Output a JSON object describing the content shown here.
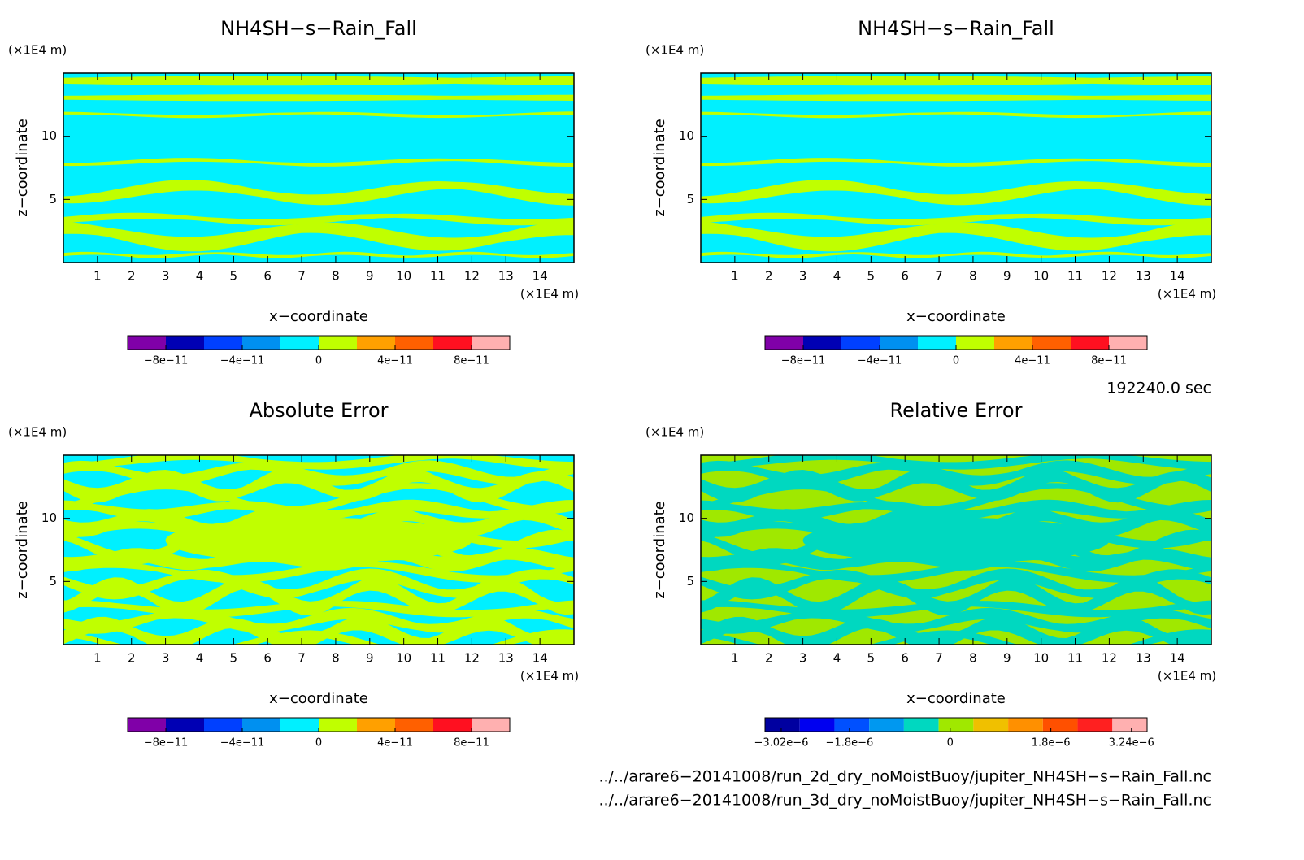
{
  "chart_data": [
    {
      "type": "contour",
      "title": "NH4SH−s−Rain_Fall",
      "y_unit": "(×1E4 m)",
      "x_unit": "(×1E4 m)",
      "ylabel": "z−coordinate",
      "xlabel": "x−coordinate",
      "xlim": [
        0,
        15
      ],
      "ylim": [
        0,
        15
      ],
      "xticks": [
        1,
        2,
        3,
        4,
        5,
        6,
        7,
        8,
        9,
        10,
        11,
        12,
        13,
        14
      ],
      "yticks": [
        5,
        10
      ],
      "colorbar": {
        "colors": [
          "#8000a8",
          "#0000b4",
          "#0040ff",
          "#0090f0",
          "#00f0ff",
          "#c0ff00",
          "#ffa000",
          "#ff6000",
          "#ff1020",
          "#ffb0b0"
        ],
        "clim": [
          -1e-10,
          1e-10
        ],
        "ticks": [
          {
            "value": -8e-11,
            "label": "−8e−11"
          },
          {
            "value": -4e-11,
            "label": "−4e−11"
          },
          0,
          {
            "value": 4e-11,
            "label": "4e−11"
          },
          {
            "value": 8e-11,
            "label": "8e−11"
          }
        ]
      }
    },
    {
      "type": "contour",
      "title": "NH4SH−s−Rain_Fall",
      "y_unit": "(×1E4 m)",
      "x_unit": "(×1E4 m)",
      "ylabel": "z−coordinate",
      "xlabel": "x−coordinate",
      "xlim": [
        0,
        15
      ],
      "ylim": [
        0,
        15
      ],
      "xticks": [
        1,
        2,
        3,
        4,
        5,
        6,
        7,
        8,
        9,
        10,
        11,
        12,
        13,
        14
      ],
      "yticks": [
        5,
        10
      ],
      "colorbar": {
        "colors": [
          "#8000a8",
          "#0000b4",
          "#0040ff",
          "#0090f0",
          "#00f0ff",
          "#c0ff00",
          "#ffa000",
          "#ff6000",
          "#ff1020",
          "#ffb0b0"
        ],
        "clim": [
          -1e-10,
          1e-10
        ],
        "ticks": [
          {
            "value": -8e-11,
            "label": "−8e−11"
          },
          {
            "value": -4e-11,
            "label": "−4e−11"
          },
          0,
          {
            "value": 4e-11,
            "label": "4e−11"
          },
          {
            "value": 8e-11,
            "label": "8e−11"
          }
        ]
      },
      "time": "192240.0 sec"
    },
    {
      "type": "contour",
      "title": "Absolute Error",
      "y_unit": "(×1E4 m)",
      "x_unit": "(×1E4 m)",
      "ylabel": "z−coordinate",
      "xlabel": "x−coordinate",
      "xlim": [
        0,
        15
      ],
      "ylim": [
        0,
        15
      ],
      "xticks": [
        1,
        2,
        3,
        4,
        5,
        6,
        7,
        8,
        9,
        10,
        11,
        12,
        13,
        14
      ],
      "yticks": [
        5,
        10
      ],
      "colorbar": {
        "colors": [
          "#8000a8",
          "#0000b4",
          "#0040ff",
          "#0090f0",
          "#00f0ff",
          "#c0ff00",
          "#ffa000",
          "#ff6000",
          "#ff1020",
          "#ffb0b0"
        ],
        "clim": [
          -1e-10,
          1e-10
        ],
        "ticks": [
          {
            "value": -8e-11,
            "label": "−8e−11"
          },
          {
            "value": -4e-11,
            "label": "−4e−11"
          },
          0,
          {
            "value": 4e-11,
            "label": "4e−11"
          },
          {
            "value": 8e-11,
            "label": "8e−11"
          }
        ]
      }
    },
    {
      "type": "contour",
      "title": "Relative Error",
      "y_unit": "(×1E4 m)",
      "x_unit": "(×1E4 m)",
      "ylabel": "z−coordinate",
      "xlabel": "x−coordinate",
      "xlim": [
        0,
        15
      ],
      "ylim": [
        0,
        15
      ],
      "xticks": [
        1,
        2,
        3,
        4,
        5,
        6,
        7,
        8,
        9,
        10,
        11,
        12,
        13,
        14
      ],
      "yticks": [
        5,
        10
      ],
      "colorbar": {
        "colors": [
          "#0000a0",
          "#0000f0",
          "#0050ff",
          "#0098f0",
          "#00d8c0",
          "#a0e800",
          "#f0c000",
          "#ff9000",
          "#ff5000",
          "#ff2020",
          "#ffb0b0"
        ],
        "clim": [
          -3.31e-06,
          3.52e-06
        ],
        "ticks": [
          {
            "value": -3.02e-06,
            "label": "−3.02e−6"
          },
          {
            "value": -1.8e-06,
            "label": "−1.8e−6"
          },
          0,
          {
            "value": 1.8e-06,
            "label": "1.8e−6"
          },
          {
            "value": 3.24e-06,
            "label": "3.24e−6"
          }
        ]
      },
      "files": [
        "../../arare6−20141008/run_2d_dry_noMoistBuoy/jupiter_NH4SH−s−Rain_Fall.nc",
        "../../arare6−20141008/run_3d_dry_noMoistBuoy/jupiter_NH4SH−s−Rain_Fall.nc"
      ]
    }
  ]
}
